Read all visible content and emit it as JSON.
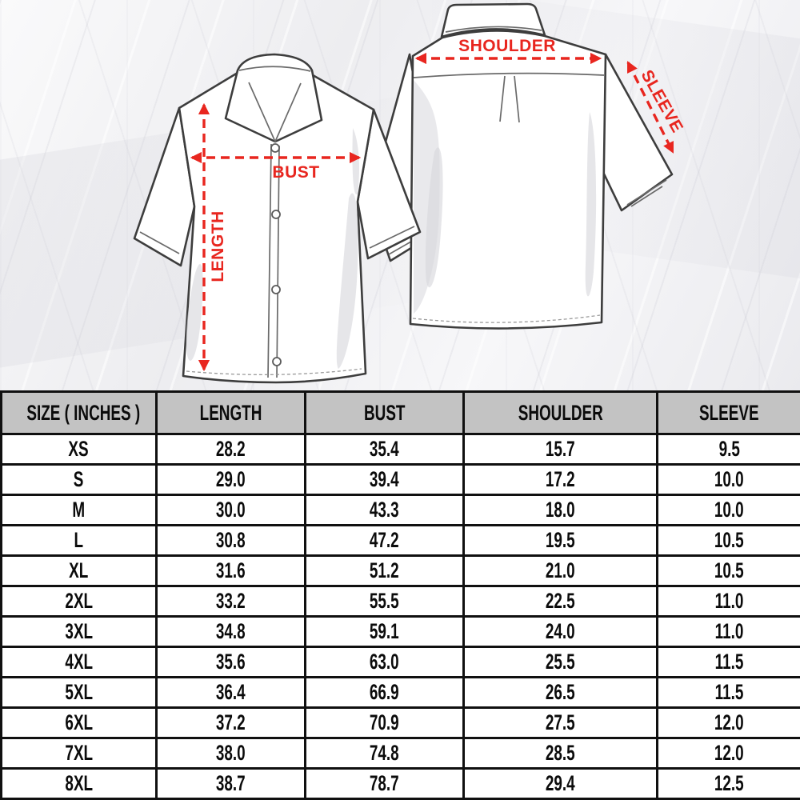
{
  "diagram": {
    "labels": {
      "bust": "BUST",
      "length": "LENGTH",
      "shoulder": "SHOULDER",
      "sleeve": "SLEEVE"
    },
    "accent_color": "#e8261f"
  },
  "table": {
    "headers": [
      "SIZE ( INCHES )",
      "LENGTH",
      "BUST",
      "SHOULDER",
      "SLEEVE"
    ],
    "rows": [
      [
        "XS",
        "28.2",
        "35.4",
        "15.7",
        "9.5"
      ],
      [
        "S",
        "29.0",
        "39.4",
        "17.2",
        "10.0"
      ],
      [
        "M",
        "30.0",
        "43.3",
        "18.0",
        "10.0"
      ],
      [
        "L",
        "30.8",
        "47.2",
        "19.5",
        "10.5"
      ],
      [
        "XL",
        "31.6",
        "51.2",
        "21.0",
        "10.5"
      ],
      [
        "2XL",
        "33.2",
        "55.5",
        "22.5",
        "11.0"
      ],
      [
        "3XL",
        "34.8",
        "59.1",
        "24.0",
        "11.0"
      ],
      [
        "4XL",
        "35.6",
        "63.0",
        "25.5",
        "11.5"
      ],
      [
        "5XL",
        "36.4",
        "66.9",
        "26.5",
        "11.5"
      ],
      [
        "6XL",
        "37.2",
        "70.9",
        "27.5",
        "12.0"
      ],
      [
        "7XL",
        "38.0",
        "74.8",
        "28.5",
        "12.0"
      ],
      [
        "8XL",
        "38.7",
        "78.7",
        "29.4",
        "12.5"
      ]
    ],
    "header_bg": "#c3c3c3",
    "border_color": "#101010"
  },
  "chart_data": {
    "type": "table",
    "columns": [
      "SIZE ( INCHES )",
      "LENGTH",
      "BUST",
      "SHOULDER",
      "SLEEVE"
    ],
    "rows": [
      [
        "XS",
        28.2,
        35.4,
        15.7,
        9.5
      ],
      [
        "S",
        29.0,
        39.4,
        17.2,
        10.0
      ],
      [
        "M",
        30.0,
        43.3,
        18.0,
        10.0
      ],
      [
        "L",
        30.8,
        47.2,
        19.5,
        10.5
      ],
      [
        "XL",
        31.6,
        51.2,
        21.0,
        10.5
      ],
      [
        "2XL",
        33.2,
        55.5,
        22.5,
        11.0
      ],
      [
        "3XL",
        34.8,
        59.1,
        24.0,
        11.0
      ],
      [
        "4XL",
        35.6,
        63.0,
        25.5,
        11.5
      ],
      [
        "5XL",
        36.4,
        66.9,
        26.5,
        11.5
      ],
      [
        "6XL",
        37.2,
        70.9,
        27.5,
        12.0
      ],
      [
        "7XL",
        38.0,
        74.8,
        28.5,
        12.0
      ],
      [
        "8XL",
        38.7,
        78.7,
        29.4,
        12.5
      ]
    ]
  }
}
